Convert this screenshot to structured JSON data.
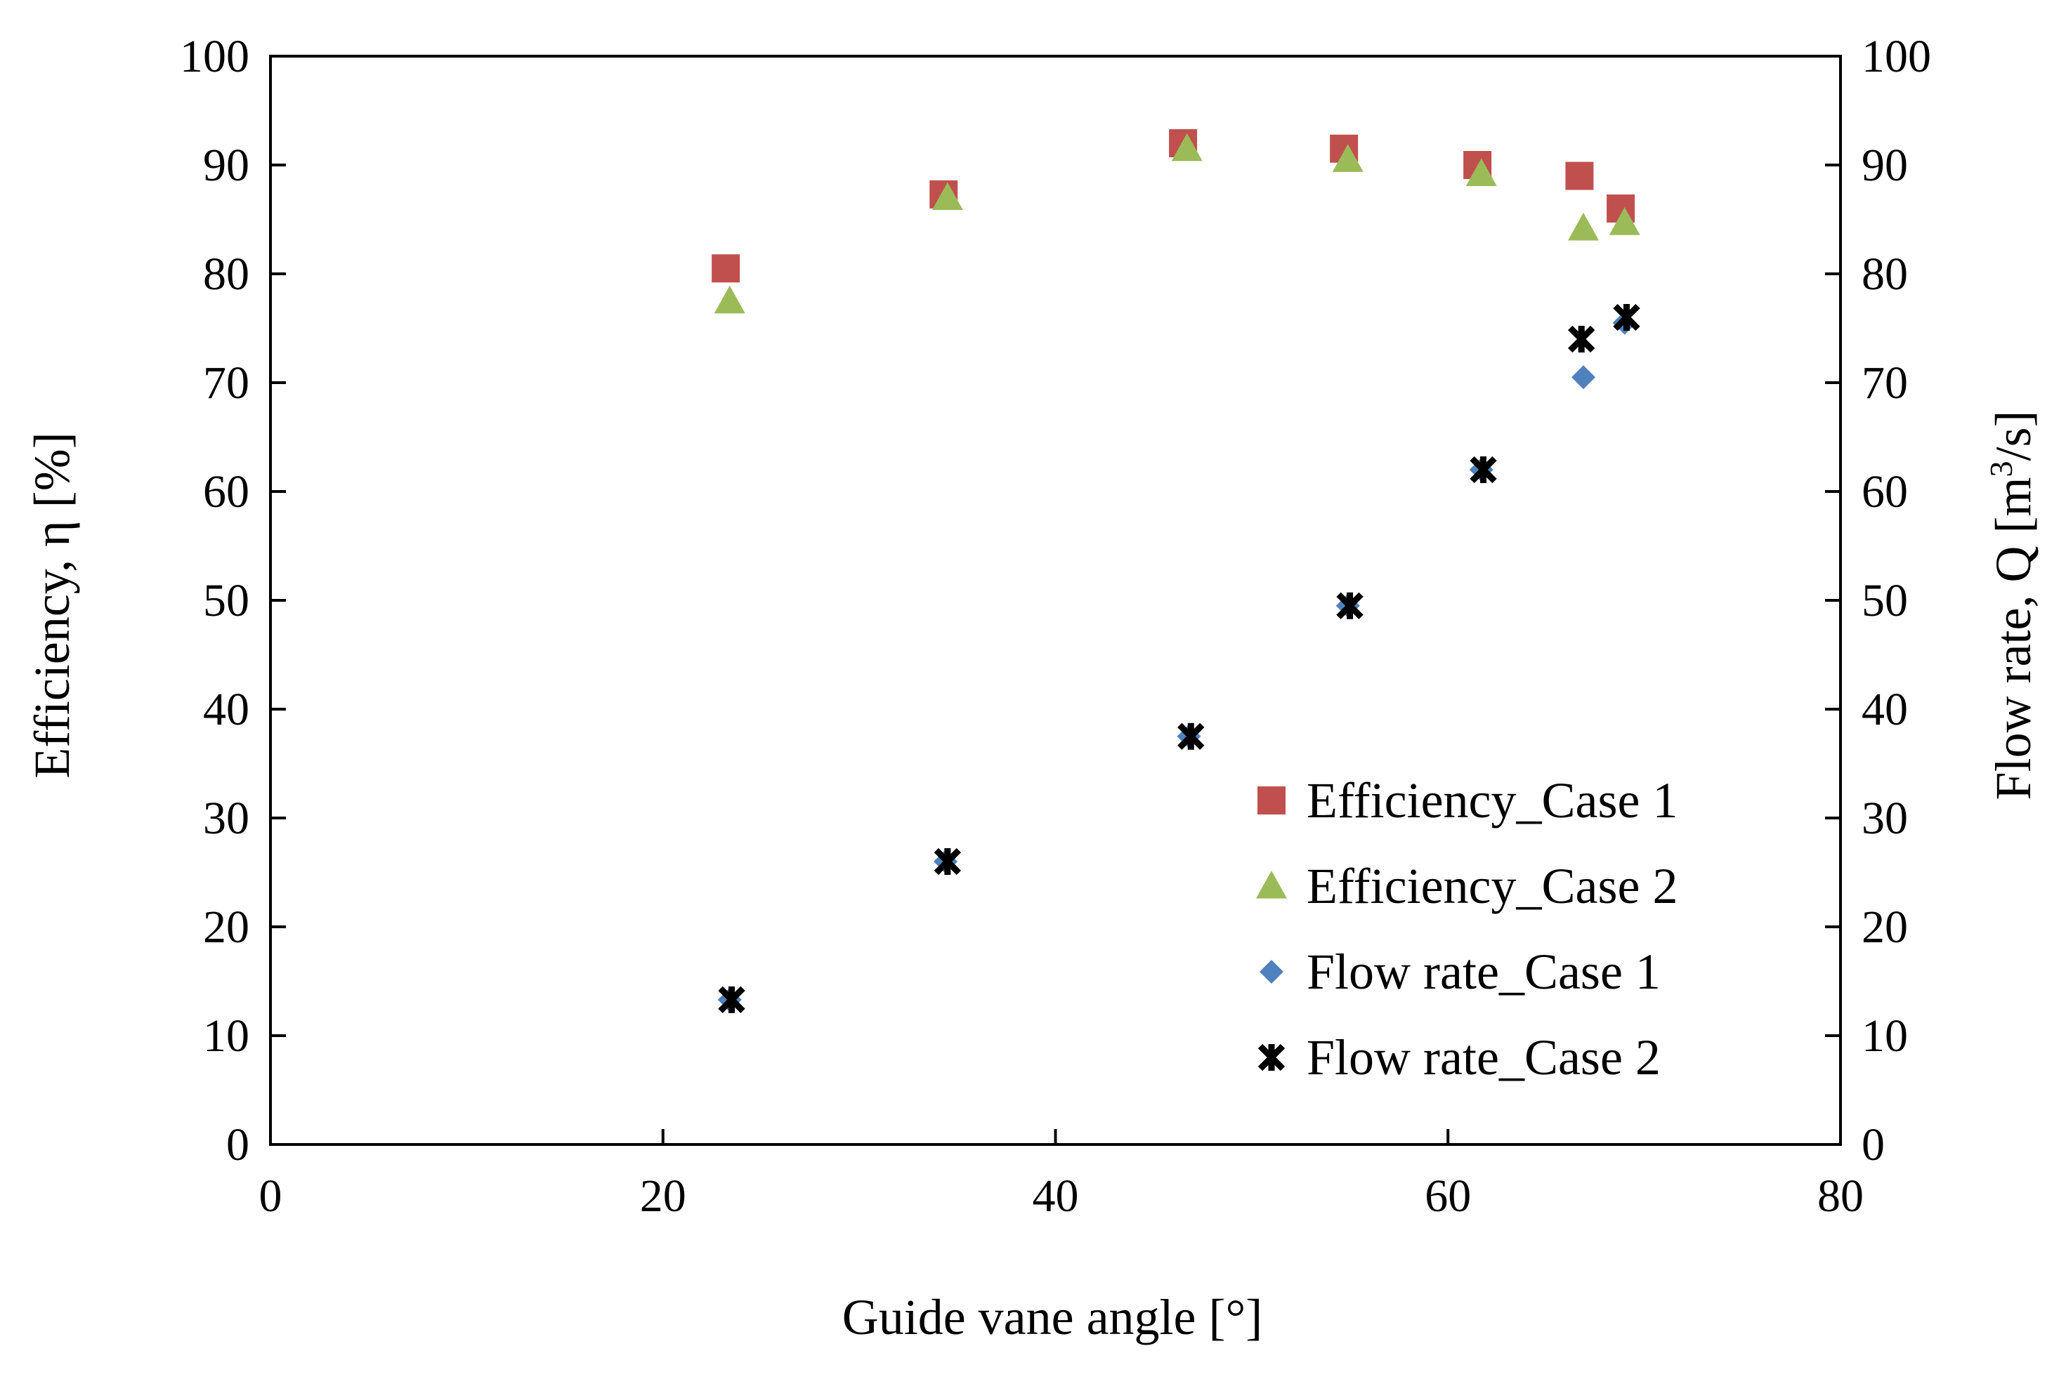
{
  "chart_data": {
    "type": "scatter",
    "title": "",
    "xlabel": "Guide vane angle [°]",
    "ylabel_left": "Efficiency, η [%]",
    "ylabel_right_parts": {
      "main": "Flow rate, Q [m",
      "superscript": "3",
      "suffix": "/s]"
    },
    "xlim": [
      0,
      80
    ],
    "ylim_left": [
      0,
      100
    ],
    "ylim_right": [
      0,
      100
    ],
    "x_ticks": [
      "0",
      "20",
      "40",
      "60",
      "80"
    ],
    "y_ticks_left": [
      "0",
      "10",
      "20",
      "30",
      "40",
      "50",
      "60",
      "70",
      "80",
      "90",
      "100"
    ],
    "y_ticks_right": [
      "0",
      "10",
      "20",
      "30",
      "40",
      "50",
      "60",
      "70",
      "80",
      "90",
      "100"
    ],
    "grid": false,
    "legend_position": "lower-right",
    "series": [
      {
        "name": "Efficiency_Case 1",
        "marker": "square",
        "color": "#c0504d",
        "x": [
          23.2,
          34.3,
          46.5,
          54.7,
          61.5,
          66.7,
          68.8
        ],
        "y": [
          80.5,
          87.3,
          92.0,
          91.5,
          90.0,
          89.0,
          86.0
        ]
      },
      {
        "name": "Efficiency_Case 2",
        "marker": "triangle",
        "color": "#9bbb59",
        "x": [
          23.4,
          34.5,
          46.7,
          54.9,
          61.7,
          66.9,
          69.0
        ],
        "y": [
          77.5,
          87.0,
          91.5,
          90.5,
          89.2,
          84.2,
          84.7
        ]
      },
      {
        "name": "Flow rate_Case 1",
        "marker": "diamond",
        "color": "#4f81bd",
        "x": [
          23.4,
          34.4,
          46.8,
          54.9,
          61.7,
          66.9,
          69.0
        ],
        "y": [
          13.3,
          26.0,
          37.5,
          49.5,
          62.0,
          70.5,
          75.5
        ]
      },
      {
        "name": "Flow rate_Case 2",
        "marker": "star",
        "color": "#000000",
        "x": [
          23.5,
          34.5,
          46.9,
          55.0,
          61.8,
          66.8,
          69.1
        ],
        "y": [
          13.3,
          26.0,
          37.5,
          49.5,
          62.0,
          74.0,
          76.0
        ]
      }
    ]
  }
}
